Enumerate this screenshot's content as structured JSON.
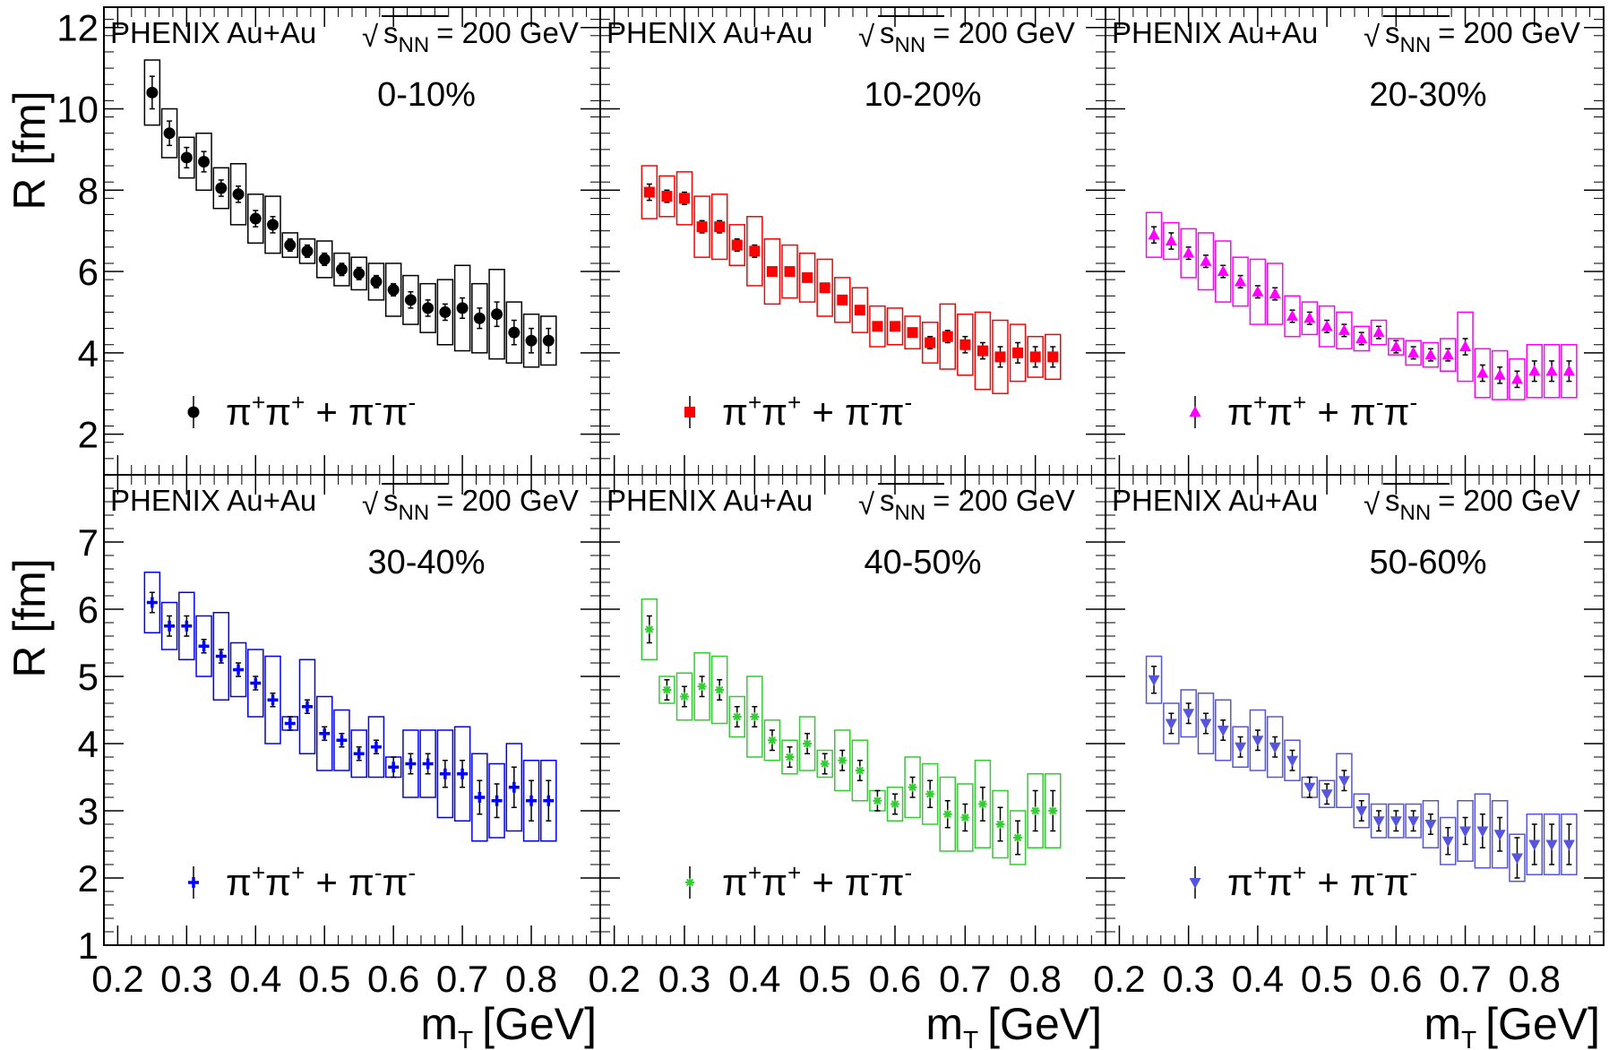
{
  "experiment": "PHENIX Au+Au",
  "energy": {
    "sqrt_symbol": "√",
    "s": "s",
    "sub": "NN",
    "value": "= 200 GeV"
  },
  "legend": {
    "pi": "π",
    "plus": "+",
    "minus": "-",
    "join": "+"
  },
  "axes": {
    "ylabel": "R [fm]",
    "xlabel_main": "m",
    "xlabel_sub": "T",
    "xlabel_units": "[GeV]"
  },
  "chart_data": [
    {
      "type": "scatter",
      "centrality": "0-10%",
      "color": "#000000",
      "marker": "circle",
      "xlim": [
        0.18,
        0.9
      ],
      "ylim": [
        1,
        12.5
      ],
      "yticks": [
        2,
        4,
        6,
        8,
        10,
        12
      ],
      "xticks": [
        0.2,
        0.3,
        0.4,
        0.5,
        0.6,
        0.7,
        0.8
      ],
      "series": [
        {
          "name": "π+π+ + π-π-",
          "x": [
            0.25,
            0.275,
            0.3,
            0.325,
            0.35,
            0.375,
            0.4,
            0.425,
            0.45,
            0.475,
            0.5,
            0.525,
            0.55,
            0.575,
            0.6,
            0.625,
            0.65,
            0.675,
            0.7,
            0.725,
            0.75,
            0.775,
            0.8,
            0.825
          ],
          "y": [
            10.4,
            9.4,
            8.8,
            8.7,
            8.05,
            7.9,
            7.3,
            7.15,
            6.65,
            6.5,
            6.3,
            6.05,
            5.95,
            5.75,
            5.55,
            5.3,
            5.1,
            5.0,
            5.1,
            4.85,
            4.95,
            4.5,
            4.3,
            4.3
          ],
          "stat_err": [
            0.4,
            0.3,
            0.25,
            0.25,
            0.2,
            0.2,
            0.2,
            0.2,
            0.15,
            0.15,
            0.15,
            0.15,
            0.15,
            0.15,
            0.15,
            0.2,
            0.2,
            0.2,
            0.25,
            0.25,
            0.3,
            0.3,
            0.3,
            0.3
          ],
          "sys_err": [
            0.8,
            0.6,
            0.5,
            0.7,
            0.5,
            0.75,
            0.6,
            0.7,
            0.3,
            0.3,
            0.45,
            0.4,
            0.4,
            0.45,
            0.65,
            0.6,
            0.6,
            0.8,
            1.05,
            0.85,
            1.1,
            0.75,
            0.65,
            0.6
          ]
        }
      ]
    },
    {
      "type": "scatter",
      "centrality": "10-20%",
      "color": "#ff0000",
      "marker": "square",
      "xlim": [
        0.18,
        0.9
      ],
      "ylim": [
        1,
        12.5
      ],
      "yticks": [
        2,
        4,
        6,
        8,
        10,
        12
      ],
      "xticks": [
        0.2,
        0.3,
        0.4,
        0.5,
        0.6,
        0.7,
        0.8
      ],
      "series": [
        {
          "name": "π+π+ + π-π-",
          "x": [
            0.25,
            0.275,
            0.3,
            0.325,
            0.35,
            0.375,
            0.4,
            0.425,
            0.45,
            0.475,
            0.5,
            0.525,
            0.55,
            0.575,
            0.6,
            0.625,
            0.65,
            0.675,
            0.7,
            0.725,
            0.75,
            0.775,
            0.8,
            0.825
          ],
          "y": [
            7.95,
            7.85,
            7.8,
            7.1,
            7.1,
            6.65,
            6.5,
            6.0,
            6.0,
            5.85,
            5.6,
            5.3,
            5.05,
            4.65,
            4.65,
            4.5,
            4.25,
            4.4,
            4.2,
            4.05,
            3.9,
            4.0,
            3.9,
            3.9
          ],
          "stat_err": [
            0.2,
            0.15,
            0.15,
            0.15,
            0.15,
            0.15,
            0.15,
            0.1,
            0.1,
            0.1,
            0.1,
            0.1,
            0.1,
            0.1,
            0.1,
            0.1,
            0.15,
            0.15,
            0.2,
            0.2,
            0.25,
            0.25,
            0.25,
            0.25
          ],
          "sys_err": [
            0.65,
            0.5,
            0.65,
            0.75,
            0.8,
            0.5,
            0.85,
            0.8,
            0.65,
            0.6,
            0.7,
            0.55,
            0.55,
            0.5,
            0.45,
            0.4,
            0.5,
            0.8,
            0.75,
            0.95,
            0.9,
            0.7,
            0.5,
            0.55
          ]
        }
      ]
    },
    {
      "type": "scatter",
      "centrality": "20-30%",
      "color": "#ff00ff",
      "marker": "triangle-up",
      "xlim": [
        0.18,
        0.9
      ],
      "ylim": [
        1,
        12.5
      ],
      "yticks": [
        2,
        4,
        6,
        8,
        10,
        12
      ],
      "xticks": [
        0.2,
        0.3,
        0.4,
        0.5,
        0.6,
        0.7,
        0.8
      ],
      "series": [
        {
          "name": "π+π+ + π-π-",
          "x": [
            0.25,
            0.275,
            0.3,
            0.325,
            0.35,
            0.375,
            0.4,
            0.425,
            0.45,
            0.475,
            0.5,
            0.525,
            0.55,
            0.575,
            0.6,
            0.625,
            0.65,
            0.675,
            0.7,
            0.725,
            0.75,
            0.775,
            0.8,
            0.825,
            0.85
          ],
          "y": [
            6.9,
            6.75,
            6.45,
            6.25,
            6.0,
            5.75,
            5.5,
            5.45,
            4.9,
            4.85,
            4.65,
            4.55,
            4.35,
            4.5,
            4.15,
            4.0,
            3.95,
            3.95,
            4.15,
            3.5,
            3.45,
            3.35,
            3.55,
            3.55,
            3.55
          ],
          "stat_err": [
            0.2,
            0.2,
            0.15,
            0.15,
            0.15,
            0.15,
            0.15,
            0.15,
            0.15,
            0.15,
            0.15,
            0.15,
            0.15,
            0.15,
            0.15,
            0.15,
            0.15,
            0.15,
            0.2,
            0.2,
            0.2,
            0.2,
            0.25,
            0.25,
            0.25
          ],
          "sys_err": [
            0.55,
            0.45,
            0.6,
            0.7,
            0.75,
            0.6,
            0.8,
            0.75,
            0.5,
            0.4,
            0.5,
            0.45,
            0.3,
            0.3,
            0.2,
            0.3,
            0.3,
            0.4,
            0.85,
            0.6,
            0.6,
            0.5,
            0.65,
            0.65,
            0.65
          ]
        }
      ]
    },
    {
      "type": "scatter",
      "centrality": "30-40%",
      "color": "#0000ff",
      "marker": "cross",
      "xlim": [
        0.18,
        0.9
      ],
      "ylim": [
        1,
        8
      ],
      "yticks": [
        1,
        2,
        3,
        4,
        5,
        6,
        7
      ],
      "xticks": [
        0.2,
        0.3,
        0.4,
        0.5,
        0.6,
        0.7,
        0.8
      ],
      "series": [
        {
          "name": "π+π+ + π-π-",
          "x": [
            0.25,
            0.275,
            0.3,
            0.325,
            0.35,
            0.375,
            0.4,
            0.425,
            0.45,
            0.475,
            0.5,
            0.525,
            0.55,
            0.575,
            0.6,
            0.625,
            0.65,
            0.675,
            0.7,
            0.725,
            0.75,
            0.775,
            0.8,
            0.825
          ],
          "y": [
            6.1,
            5.75,
            5.75,
            5.45,
            5.3,
            5.1,
            4.9,
            4.65,
            4.3,
            4.55,
            4.15,
            4.05,
            3.85,
            3.95,
            3.65,
            3.7,
            3.7,
            3.55,
            3.55,
            3.2,
            3.15,
            3.35,
            3.15,
            3.15
          ],
          "stat_err": [
            0.15,
            0.15,
            0.15,
            0.1,
            0.1,
            0.1,
            0.1,
            0.1,
            0.1,
            0.1,
            0.1,
            0.1,
            0.1,
            0.1,
            0.15,
            0.15,
            0.15,
            0.2,
            0.2,
            0.25,
            0.25,
            0.3,
            0.3,
            0.3
          ],
          "sys_err": [
            0.45,
            0.35,
            0.5,
            0.45,
            0.65,
            0.4,
            0.5,
            0.65,
            0.1,
            0.7,
            0.55,
            0.45,
            0.35,
            0.45,
            0.15,
            0.5,
            0.5,
            0.65,
            0.7,
            0.65,
            0.55,
            0.65,
            0.6,
            0.6
          ]
        }
      ]
    },
    {
      "type": "scatter",
      "centrality": "40-50%",
      "color": "#33cc33",
      "marker": "star",
      "xlim": [
        0.18,
        0.9
      ],
      "ylim": [
        1,
        8
      ],
      "yticks": [
        1,
        2,
        3,
        4,
        5,
        6,
        7
      ],
      "xticks": [
        0.2,
        0.3,
        0.4,
        0.5,
        0.6,
        0.7,
        0.8
      ],
      "series": [
        {
          "name": "π+π+ + π-π-",
          "x": [
            0.25,
            0.275,
            0.3,
            0.325,
            0.35,
            0.375,
            0.4,
            0.425,
            0.45,
            0.475,
            0.5,
            0.525,
            0.55,
            0.575,
            0.6,
            0.625,
            0.65,
            0.675,
            0.7,
            0.725,
            0.75,
            0.775,
            0.8,
            0.825
          ],
          "y": [
            5.7,
            4.8,
            4.7,
            4.85,
            4.8,
            4.4,
            4.4,
            4.05,
            3.8,
            4.0,
            3.7,
            3.75,
            3.6,
            3.15,
            3.1,
            3.35,
            3.25,
            2.95,
            2.9,
            3.1,
            2.8,
            2.6,
            3.0,
            3.0
          ],
          "stat_err": [
            0.2,
            0.15,
            0.15,
            0.15,
            0.15,
            0.15,
            0.15,
            0.15,
            0.15,
            0.15,
            0.15,
            0.15,
            0.15,
            0.15,
            0.15,
            0.15,
            0.2,
            0.2,
            0.2,
            0.25,
            0.25,
            0.25,
            0.3,
            0.3
          ],
          "sys_err": [
            0.45,
            0.2,
            0.35,
            0.5,
            0.5,
            0.3,
            0.6,
            0.3,
            0.25,
            0.4,
            0.2,
            0.45,
            0.45,
            0.15,
            0.25,
            0.45,
            0.45,
            0.55,
            0.5,
            0.65,
            0.5,
            0.4,
            0.55,
            0.55
          ]
        }
      ]
    },
    {
      "type": "scatter",
      "centrality": "50-60%",
      "color": "#5555dd",
      "marker": "triangle-down",
      "xlim": [
        0.18,
        0.9
      ],
      "ylim": [
        1,
        8
      ],
      "yticks": [
        1,
        2,
        3,
        4,
        5,
        6,
        7
      ],
      "xticks": [
        0.2,
        0.3,
        0.4,
        0.5,
        0.6,
        0.7,
        0.8
      ],
      "series": [
        {
          "name": "π+π+ + π-π-",
          "x": [
            0.25,
            0.275,
            0.3,
            0.325,
            0.35,
            0.375,
            0.4,
            0.425,
            0.45,
            0.475,
            0.5,
            0.525,
            0.55,
            0.575,
            0.6,
            0.625,
            0.65,
            0.675,
            0.7,
            0.725,
            0.75,
            0.775,
            0.8,
            0.825,
            0.85
          ],
          "y": [
            4.95,
            4.3,
            4.45,
            4.3,
            4.2,
            3.95,
            4.05,
            3.95,
            3.75,
            3.35,
            3.25,
            3.45,
            3.0,
            2.85,
            2.85,
            2.85,
            2.8,
            2.55,
            2.7,
            2.7,
            2.65,
            2.3,
            2.5,
            2.5,
            2.5
          ],
          "stat_err": [
            0.2,
            0.15,
            0.15,
            0.15,
            0.15,
            0.15,
            0.15,
            0.15,
            0.15,
            0.15,
            0.15,
            0.15,
            0.15,
            0.15,
            0.15,
            0.15,
            0.15,
            0.2,
            0.2,
            0.25,
            0.25,
            0.3,
            0.3,
            0.3,
            0.3
          ],
          "sys_err": [
            0.35,
            0.3,
            0.35,
            0.45,
            0.45,
            0.3,
            0.45,
            0.45,
            0.3,
            0.15,
            0.2,
            0.4,
            0.25,
            0.25,
            0.25,
            0.25,
            0.35,
            0.35,
            0.45,
            0.55,
            0.5,
            0.35,
            0.45,
            0.45,
            0.45
          ]
        }
      ]
    }
  ]
}
